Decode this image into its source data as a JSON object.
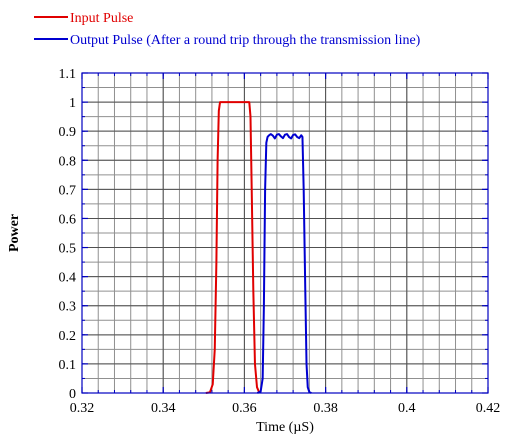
{
  "chart_data": {
    "type": "line",
    "xlabel": "Time (µS)",
    "ylabel": "Power",
    "xlim": [
      0.32,
      0.42
    ],
    "ylim": [
      0,
      1.1
    ],
    "x_ticks": [
      0.32,
      0.34,
      0.36,
      0.38,
      0.4,
      0.42
    ],
    "x_tick_labels": [
      "0.32",
      "0.34",
      "0.36",
      "0.38",
      "0.4",
      "0.42"
    ],
    "y_ticks": [
      0,
      0.1,
      0.2,
      0.3,
      0.4,
      0.5,
      0.6,
      0.7,
      0.8,
      0.9,
      1,
      1.1
    ],
    "y_tick_labels": [
      "0",
      "0.1",
      "0.2",
      "0.3",
      "0.4",
      "0.5",
      "0.6",
      "0.7",
      "0.8",
      "0.9",
      "1",
      "1.1"
    ],
    "x_minor_step": 0.004,
    "y_minor_step": 0.05,
    "grid": true,
    "legend_position": "top",
    "series": [
      {
        "name": "Input Pulse",
        "color": "#e00000",
        "x": [
          0.3505,
          0.3515,
          0.3522,
          0.3527,
          0.3531,
          0.3534,
          0.3537,
          0.354,
          0.3545,
          0.357,
          0.36,
          0.3612,
          0.3615,
          0.3618,
          0.3622,
          0.3626,
          0.3631,
          0.3637
        ],
        "y": [
          0,
          0.002,
          0.03,
          0.15,
          0.45,
          0.8,
          0.97,
          1.0,
          1.0,
          1.0,
          1.0,
          1.0,
          0.95,
          0.7,
          0.35,
          0.1,
          0.02,
          0
        ]
      },
      {
        "name": "Output Pulse (After a round trip through the transmission line)",
        "color": "#0000d0",
        "x": [
          0.3632,
          0.364,
          0.3645,
          0.3648,
          0.3651,
          0.3654,
          0.3657,
          0.366,
          0.3665,
          0.367,
          0.3675,
          0.368,
          0.3685,
          0.369,
          0.3695,
          0.37,
          0.3705,
          0.371,
          0.3715,
          0.372,
          0.3725,
          0.373,
          0.3735,
          0.374,
          0.3743,
          0.3746,
          0.375,
          0.3753,
          0.3756,
          0.376,
          0.3765
        ],
        "y": [
          0,
          0.005,
          0.05,
          0.3,
          0.7,
          0.86,
          0.88,
          0.885,
          0.89,
          0.885,
          0.875,
          0.888,
          0.89,
          0.882,
          0.876,
          0.888,
          0.89,
          0.88,
          0.875,
          0.887,
          0.889,
          0.88,
          0.876,
          0.886,
          0.88,
          0.7,
          0.35,
          0.1,
          0.02,
          0.003,
          0
        ]
      }
    ]
  }
}
